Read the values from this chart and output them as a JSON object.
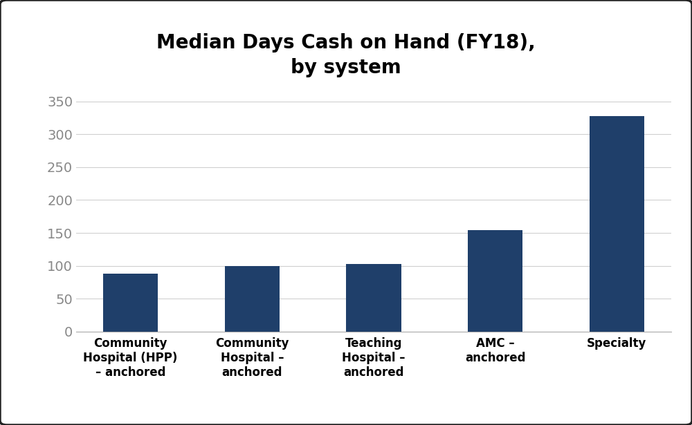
{
  "title": "Median Days Cash on Hand (FY18),\nby system",
  "categories": [
    "Community\nHospital (HPP)\n– anchored",
    "Community\nHospital –\nanchored",
    "Teaching\nHospital –\nanchored",
    "AMC –\nanchored",
    "Specialty"
  ],
  "values": [
    88,
    100,
    103,
    154,
    328
  ],
  "bar_color": "#1F3F6A",
  "ylim": [
    0,
    375
  ],
  "yticks": [
    0,
    50,
    100,
    150,
    200,
    250,
    300,
    350
  ],
  "background_color": "#ffffff",
  "outer_border_color": "#222222",
  "grid_color": "#d0d0d0",
  "ytick_color": "#888888",
  "title_fontsize": 20,
  "ytick_fontsize": 14,
  "xtick_fontsize": 12,
  "bar_width": 0.45
}
